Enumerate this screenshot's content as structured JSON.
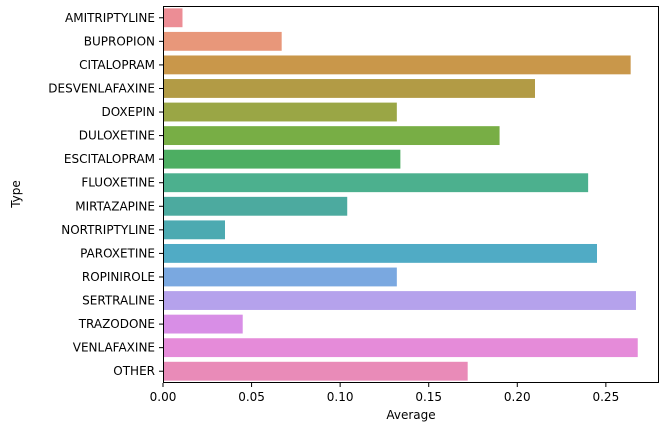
{
  "chart_data": {
    "type": "bar",
    "orientation": "horizontal",
    "title": "",
    "xlabel": "Average",
    "ylabel": "Type",
    "xlim": [
      0,
      0.28
    ],
    "xticks": [
      "0.00",
      "0.05",
      "0.10",
      "0.15",
      "0.20",
      "0.25"
    ],
    "xtick_values": [
      0,
      0.05,
      0.1,
      0.15,
      0.2,
      0.25
    ],
    "grid": false,
    "legend": "none",
    "categories": [
      "AMITRIPTYLINE",
      "BUPROPION",
      "CITALOPRAM",
      "DESVENLAFAXINE",
      "DOXEPIN",
      "DULOXETINE",
      "ESCITALOPRAM",
      "FLUOXETINE",
      "MIRTAZAPINE",
      "NORTRIPTYLINE",
      "PAROXETINE",
      "ROPINIROLE",
      "SERTRALINE",
      "TRAZODONE",
      "VENLAFAXINE",
      "OTHER"
    ],
    "values": [
      0.011,
      0.067,
      0.264,
      0.21,
      0.132,
      0.19,
      0.134,
      0.24,
      0.104,
      0.035,
      0.245,
      0.132,
      0.267,
      0.045,
      0.268,
      0.172
    ],
    "colors": [
      "#ec8d95",
      "#e8977a",
      "#c9974a",
      "#b29b45",
      "#9aa645",
      "#78ae45",
      "#4dae62",
      "#4cb08e",
      "#4caa9f",
      "#4caab1",
      "#50abc5",
      "#7aa8e0",
      "#b5a2ec",
      "#d88ee6",
      "#e58bd9",
      "#e98bb8"
    ]
  }
}
